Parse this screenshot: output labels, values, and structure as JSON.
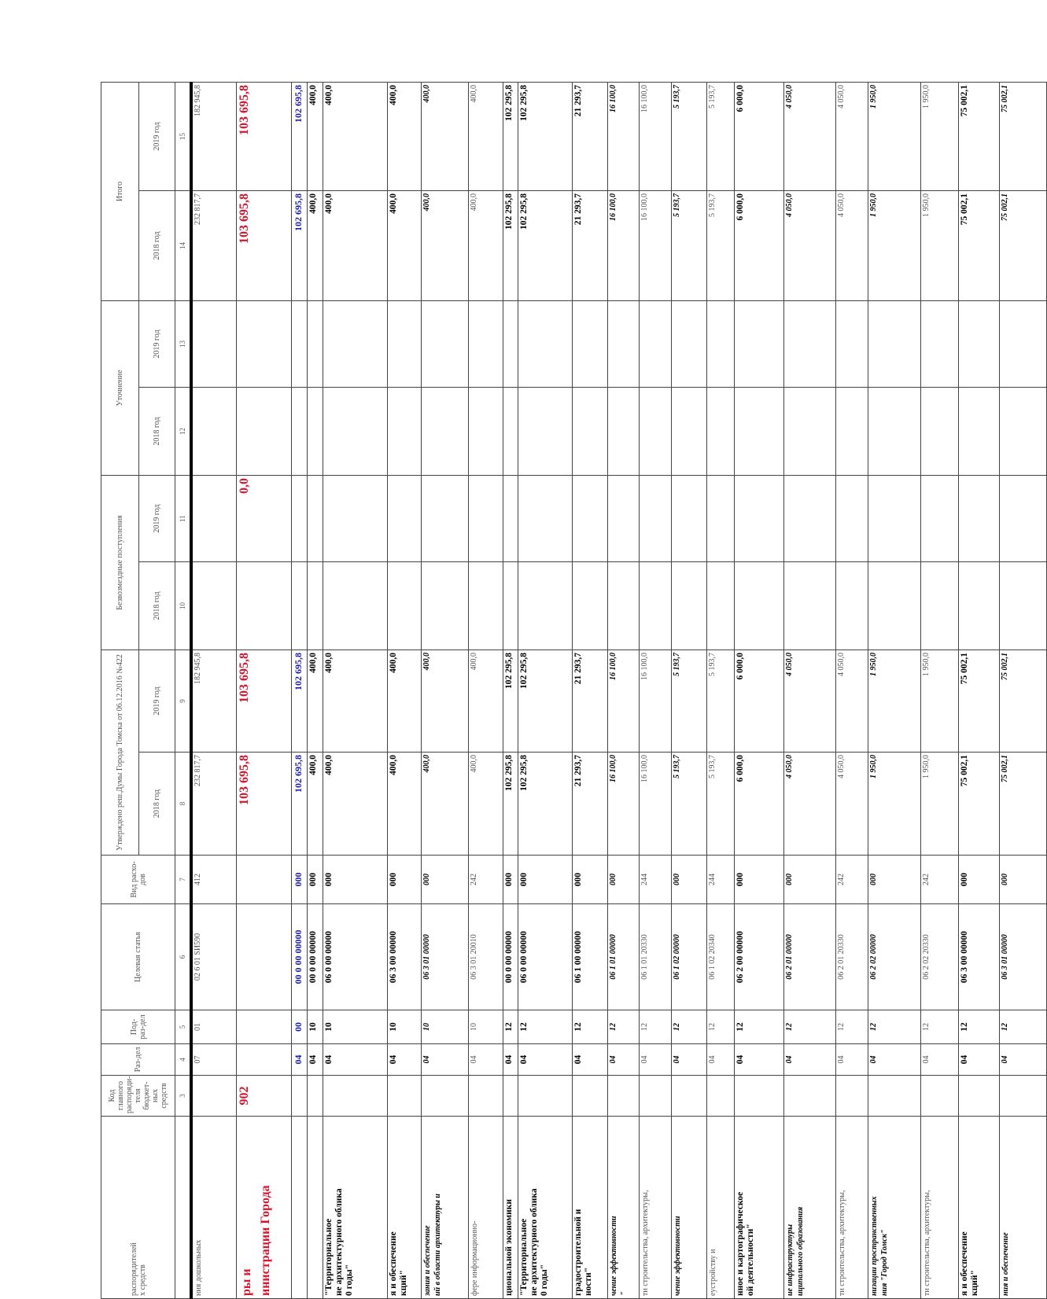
{
  "colors": {
    "red": "#e0102a",
    "blue": "#1a1ab8"
  },
  "header": {
    "name": "распорядителей\nх средств",
    "code": "Код главного распоряди-теля бюджет-ных средств",
    "razdel": "Раз-дел",
    "podrazdel": "Под-раз-дел",
    "target": "Целевая статья",
    "vid": "Вид расхо-дов",
    "approved": "Утверждено реш.Думы Города Томска от 06.12.2016 №422",
    "grants": "Безвозмездные поступления",
    "clarification": "Уточнение",
    "total": "Итого",
    "years": [
      "2018 год",
      "2019 год",
      "2018 год",
      "2019 год",
      "2018 год",
      "2019 год",
      "2018 год",
      "2019 год"
    ],
    "numbers": [
      "",
      "3",
      "4",
      "5",
      "6",
      "7",
      "8",
      "9",
      "10",
      "11",
      "12",
      "13",
      "14",
      "15"
    ]
  },
  "rows": [
    {
      "style": "normal",
      "name": [
        "ния дошкольных"
      ],
      "code": "",
      "razdel": "07",
      "podrazdel": "01",
      "target": "02 6 01 SИ590",
      "vid": "412",
      "v8": "232 817,7",
      "v9": "182 945,8",
      "v10": "",
      "v11": "",
      "v12": "",
      "v13": "",
      "v14": "232 817,7",
      "v15": "182 945,8"
    },
    {
      "style": "red",
      "name": [
        "ры и",
        "инистрации Города"
      ],
      "code": "902",
      "razdel": "",
      "podrazdel": "",
      "target": "",
      "vid": "",
      "v8": "103 695,8",
      "v9": "103 695,8",
      "v10": "",
      "v11": "0,0",
      "v12": "",
      "v13": "",
      "v14": "103 695,8",
      "v15": "103 695,8"
    },
    {
      "style": "blue",
      "name": [
        ""
      ],
      "code": "",
      "razdel": "04",
      "podrazdel": "00",
      "target": "00 0 00 00000",
      "vid": "000",
      "v8": "102 695,8",
      "v9": "102 695,8",
      "v10": "",
      "v11": "",
      "v12": "",
      "v13": "",
      "v14": "102 695,8",
      "v15": "102 695,8"
    },
    {
      "style": "bold",
      "name": [
        ""
      ],
      "code": "",
      "razdel": "04",
      "podrazdel": "10",
      "target": "00 0 00 00000",
      "vid": "000",
      "v8": "400,0",
      "v9": "400,0",
      "v10": "",
      "v11": "",
      "v12": "",
      "v13": "",
      "v14": "400,0",
      "v15": "400,0"
    },
    {
      "style": "bold",
      "name": [
        "\"Территориальное",
        "не архитектурного облика",
        "0 годы\""
      ],
      "code": "",
      "razdel": "04",
      "podrazdel": "10",
      "target": "06 0 00 00000",
      "vid": "000",
      "v8": "400,0",
      "v9": "400,0",
      "v10": "",
      "v11": "",
      "v12": "",
      "v13": "",
      "v14": "400,0",
      "v15": "400,0"
    },
    {
      "style": "bold",
      "name": [
        "я и обеспечение",
        "кций\""
      ],
      "code": "",
      "razdel": "04",
      "podrazdel": "10",
      "target": "06 3 00 00000",
      "vid": "000",
      "v8": "400,0",
      "v9": "400,0",
      "v10": "",
      "v11": "",
      "v12": "",
      "v13": "",
      "v14": "400,0",
      "v15": "400,0"
    },
    {
      "style": "italic",
      "name": [
        "зания и обеспечение",
        "ий в области архитектуры и"
      ],
      "code": "",
      "razdel": "04",
      "podrazdel": "10",
      "target": "06 3 01 00000",
      "vid": "000",
      "v8": "400,0",
      "v9": "400,0",
      "v10": "",
      "v11": "",
      "v12": "",
      "v13": "",
      "v14": "400,0",
      "v15": "400,0"
    },
    {
      "style": "normal",
      "name": [
        "фере информационно-"
      ],
      "code": "",
      "razdel": "04",
      "podrazdel": "10",
      "target": "06 3 01 20010",
      "vid": "242",
      "v8": "400,0",
      "v9": "400,0",
      "v10": "",
      "v11": "",
      "v12": "",
      "v13": "",
      "v14": "400,0",
      "v15": "400,0"
    },
    {
      "style": "bold",
      "name": [
        "циональной экономики"
      ],
      "code": "",
      "razdel": "04",
      "podrazdel": "12",
      "target": "00 0 00 00000",
      "vid": "000",
      "v8": "102 295,8",
      "v9": "102 295,8",
      "v10": "",
      "v11": "",
      "v12": "",
      "v13": "",
      "v14": "102 295,8",
      "v15": "102 295,8"
    },
    {
      "style": "bold",
      "name": [
        "\"Территориальное",
        "не архитектурного облика",
        "0 годы\""
      ],
      "code": "",
      "razdel": "04",
      "podrazdel": "12",
      "target": "06 0 00 00000",
      "vid": "000",
      "v8": "102 295,8",
      "v9": "102 295,8",
      "v10": "",
      "v11": "",
      "v12": "",
      "v13": "",
      "v14": "102 295,8",
      "v15": "102 295,8"
    },
    {
      "style": "bold",
      "name": [
        "градостроительной и",
        "ности\""
      ],
      "code": "",
      "razdel": "04",
      "podrazdel": "12",
      "target": "06 1 00 00000",
      "vid": "000",
      "v8": "21 293,7",
      "v9": "21 293,7",
      "v10": "",
      "v11": "",
      "v12": "",
      "v13": "",
      "v14": "21 293,7",
      "v15": "21 293,7"
    },
    {
      "style": "italic",
      "name": [
        "чение эффективности",
        "\""
      ],
      "code": "",
      "razdel": "04",
      "podrazdel": "12",
      "target": "06 1 01 00000",
      "vid": "000",
      "v8": "16 100,0",
      "v9": "16 100,0",
      "v10": "",
      "v11": "",
      "v12": "",
      "v13": "",
      "v14": "16 100,0",
      "v15": "16 100,0"
    },
    {
      "style": "normal",
      "name": [
        "ти строительства, архитектуры,"
      ],
      "code": "",
      "razdel": "04",
      "podrazdel": "12",
      "target": "06 1 01 20330",
      "vid": "244",
      "v8": "16 100,0",
      "v9": "16 100,0",
      "v10": "",
      "v11": "",
      "v12": "",
      "v13": "",
      "v14": "16 100,0",
      "v15": "16 100,0"
    },
    {
      "style": "italic",
      "name": [
        "чение эффективности"
      ],
      "code": "",
      "razdel": "04",
      "podrazdel": "12",
      "target": "06 1 02 00000",
      "vid": "000",
      "v8": "5 193,7",
      "v9": "5 193,7",
      "v10": "",
      "v11": "",
      "v12": "",
      "v13": "",
      "v14": "5 193,7",
      "v15": "5 193,7"
    },
    {
      "style": "normal",
      "name": [
        "еустройству и"
      ],
      "code": "",
      "razdel": "04",
      "podrazdel": "12",
      "target": "06 1 02 20340",
      "vid": "244",
      "v8": "5 193,7",
      "v9": "5 193,7",
      "v10": "",
      "v11": "",
      "v12": "",
      "v13": "",
      "v14": "5 193,7",
      "v15": "5 193,7"
    },
    {
      "style": "bold",
      "name": [
        "нное и картографическое",
        "ой деятельности\""
      ],
      "code": "",
      "razdel": "04",
      "podrazdel": "12",
      "target": "06 2 00 00000",
      "vid": "000",
      "v8": "6 000,0",
      "v9": "6 000,0",
      "v10": "",
      "v11": "",
      "v12": "",
      "v13": "",
      "v14": "6 000,0",
      "v15": "6 000,0"
    },
    {
      "style": "italic",
      "name": [
        "ие инфраструктуры",
        "иципального образования"
      ],
      "code": "",
      "razdel": "04",
      "podrazdel": "12",
      "target": "06 2 01 00000",
      "vid": "000",
      "v8": "4 050,0",
      "v9": "4 050,0",
      "v10": "",
      "v11": "",
      "v12": "",
      "v13": "",
      "v14": "4 050,0",
      "v15": "4 050,0"
    },
    {
      "style": "normal",
      "name": [
        "ти строительства, архитектуры,"
      ],
      "code": "",
      "razdel": "04",
      "podrazdel": "12",
      "target": "06 2 01 20330",
      "vid": "242",
      "v8": "4 050,0",
      "v9": "4 050,0",
      "v10": "",
      "v11": "",
      "v12": "",
      "v13": "",
      "v14": "4 050,0",
      "v15": "4 050,0"
    },
    {
      "style": "italic",
      "name": [
        "низации пространственных",
        "ния \"Город Томск\""
      ],
      "code": "",
      "razdel": "04",
      "podrazdel": "12",
      "target": "06 2 02 00000",
      "vid": "000",
      "v8": "1 950,0",
      "v9": "1 950,0",
      "v10": "",
      "v11": "",
      "v12": "",
      "v13": "",
      "v14": "1 950,0",
      "v15": "1 950,0"
    },
    {
      "style": "normal",
      "name": [
        "ти строительства, архитектуры,"
      ],
      "code": "",
      "razdel": "04",
      "podrazdel": "12",
      "target": "06 2 02 20330",
      "vid": "242",
      "v8": "1 950,0",
      "v9": "1 950,0",
      "v10": "",
      "v11": "",
      "v12": "",
      "v13": "",
      "v14": "1 950,0",
      "v15": "1 950,0"
    },
    {
      "style": "bold",
      "name": [
        "я и обеспечение",
        "кций\""
      ],
      "code": "",
      "razdel": "04",
      "podrazdel": "12",
      "target": "06 3 00 00000",
      "vid": "000",
      "v8": "75 002,1",
      "v9": "75 002,1",
      "v10": "",
      "v11": "",
      "v12": "",
      "v13": "",
      "v14": "75 002,1",
      "v15": "75 002,1"
    },
    {
      "style": "italic",
      "name": [
        "ния и обеспечение"
      ],
      "code": "",
      "razdel": "04",
      "podrazdel": "12",
      "target": "06 3 01 00000",
      "vid": "000",
      "v8": "75 002,1",
      "v9": "75 002,1",
      "v10": "",
      "v11": "",
      "v12": "",
      "v13": "",
      "v14": "75 002,1",
      "v15": "75 002,1"
    }
  ]
}
